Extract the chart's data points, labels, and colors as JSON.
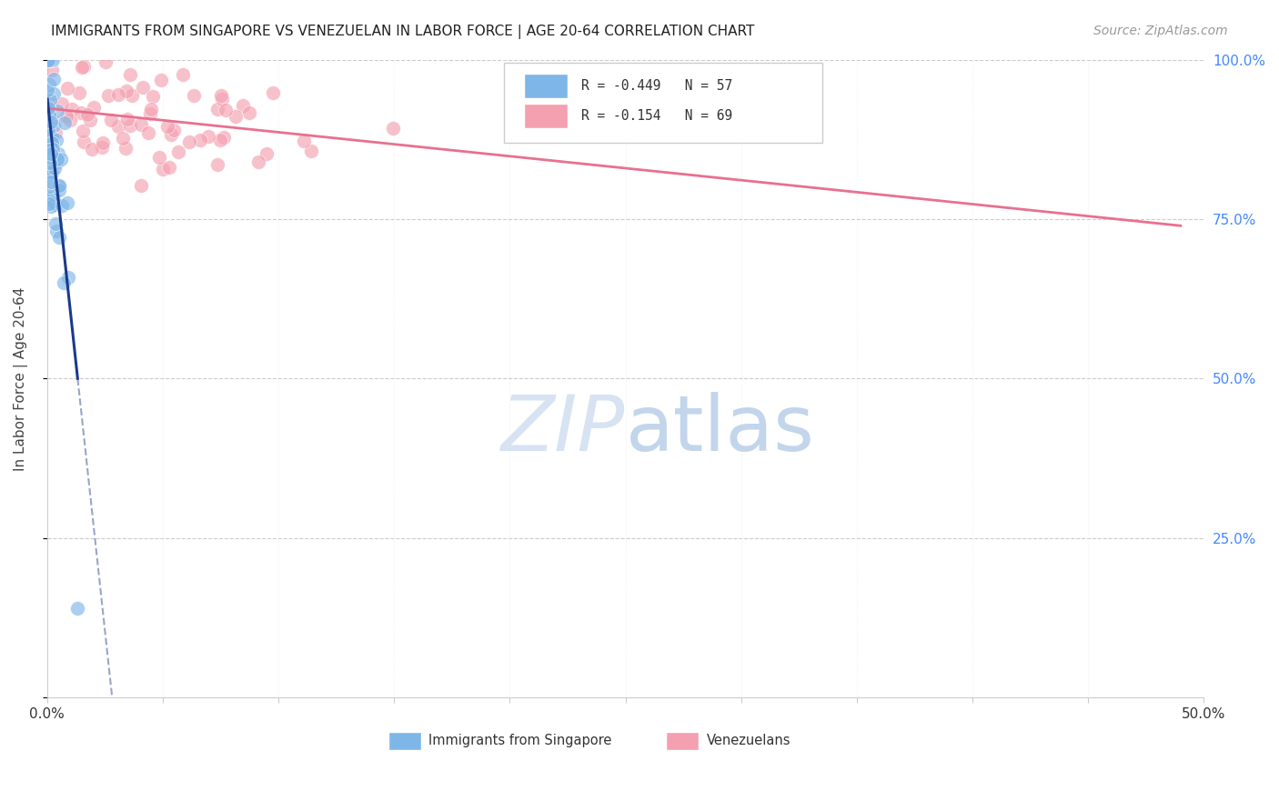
{
  "title": "IMMIGRANTS FROM SINGAPORE VS VENEZUELAN IN LABOR FORCE | AGE 20-64 CORRELATION CHART",
  "source": "Source: ZipAtlas.com",
  "ylabel": "In Labor Force | Age 20-64",
  "xlim": [
    0.0,
    0.5
  ],
  "ylim": [
    0.0,
    1.0
  ],
  "singapore_R": -0.449,
  "singapore_N": 57,
  "venezuela_R": -0.154,
  "venezuela_N": 69,
  "singapore_color": "#7EB6E8",
  "venezuela_color": "#F4A0B0",
  "singapore_line_color": "#1A3A8A",
  "venezuela_line_color": "#E87090",
  "background_color": "#FFFFFF"
}
